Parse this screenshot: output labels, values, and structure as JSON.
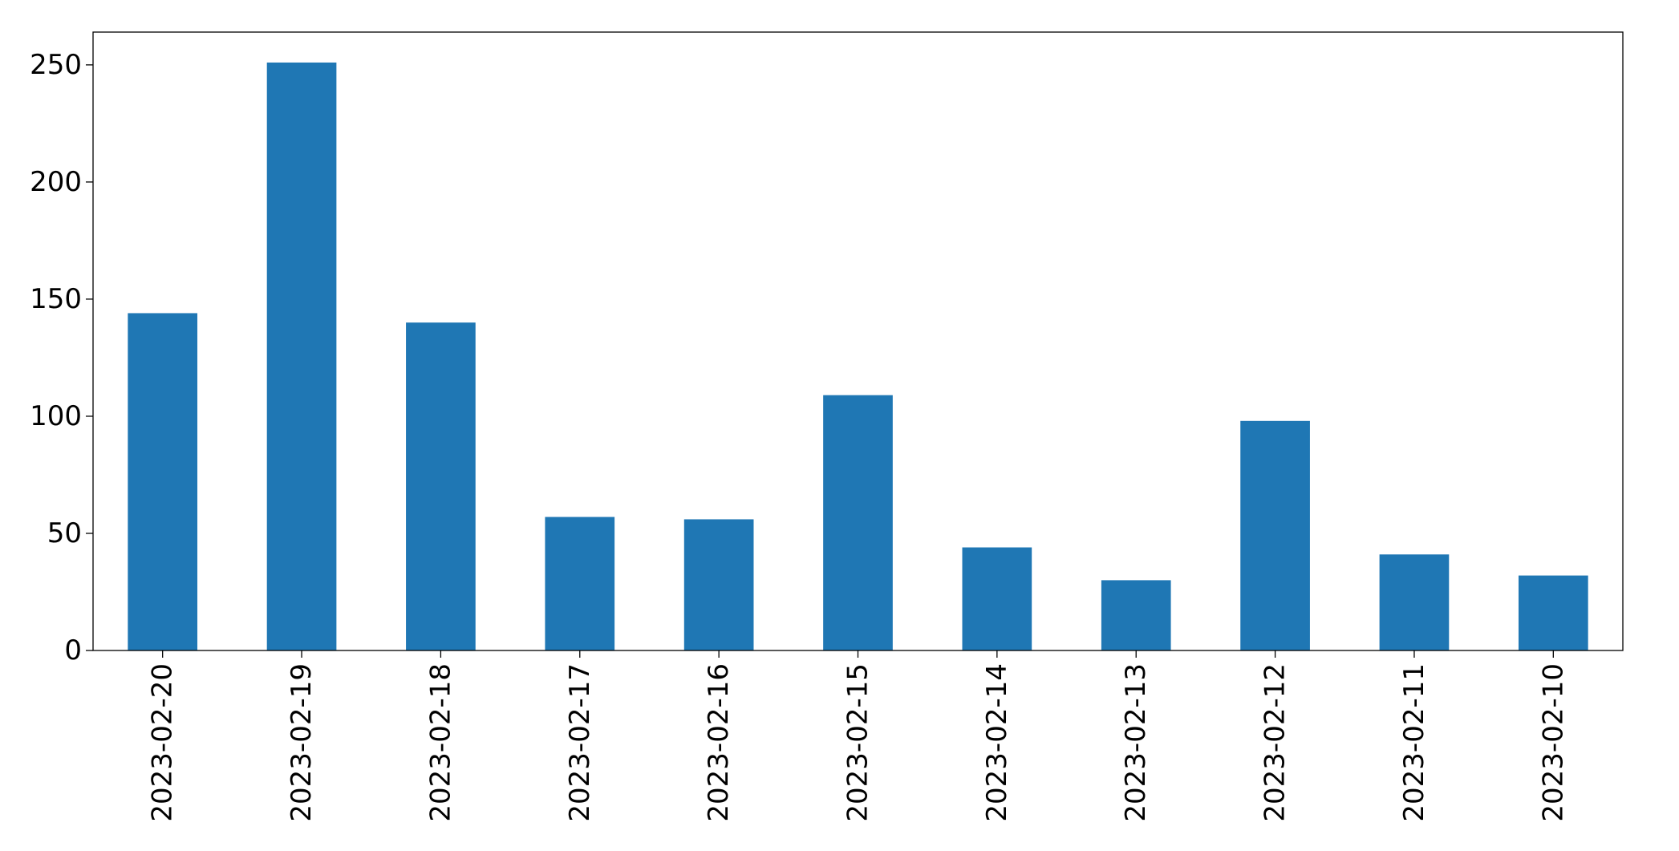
{
  "chart_data": {
    "type": "bar",
    "title": "",
    "xlabel": "",
    "ylabel": "",
    "categories": [
      "2023-02-20",
      "2023-02-19",
      "2023-02-18",
      "2023-02-17",
      "2023-02-16",
      "2023-02-15",
      "2023-02-14",
      "2023-02-13",
      "2023-02-12",
      "2023-02-11",
      "2023-02-10"
    ],
    "values": [
      144,
      251,
      140,
      57,
      56,
      109,
      44,
      30,
      98,
      41,
      32
    ],
    "ylim": [
      0,
      264
    ],
    "yticks": [
      0,
      50,
      100,
      150,
      200,
      250
    ],
    "grid": false,
    "legend": "none",
    "bar_color": "#1f77b4",
    "axis_color": "#000000"
  }
}
